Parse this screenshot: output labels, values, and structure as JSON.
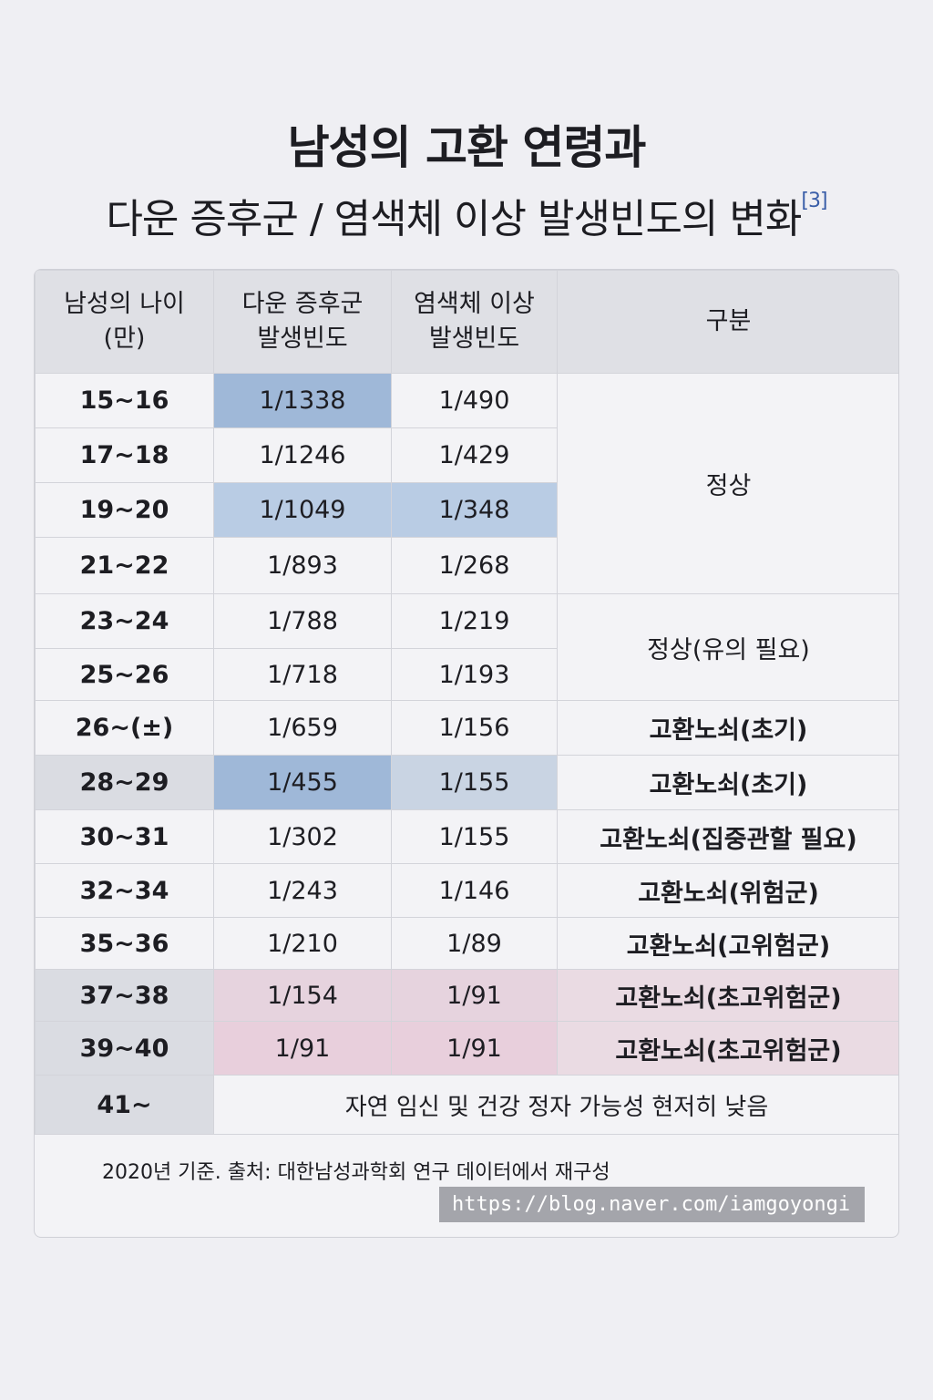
{
  "title": "남성의 고환 연령과",
  "subtitle": "다운 증후군 / 염색체 이상 발생빈도의 변화",
  "citation": "[3]",
  "table": {
    "headers": [
      "남성의 나이\n(만)",
      "다운 증후군\n발생빈도",
      "염색체 이상\n발생빈도",
      "구분"
    ],
    "rows": [
      {
        "age": "15~16",
        "down": "1/1338",
        "chrom": "1/490"
      },
      {
        "age": "17~18",
        "down": "1/1246",
        "chrom": "1/429"
      },
      {
        "age": "19~20",
        "down": "1/1049",
        "chrom": "1/348"
      },
      {
        "age": "21~22",
        "down": "1/893",
        "chrom": "1/268"
      },
      {
        "age": "23~24",
        "down": "1/788",
        "chrom": "1/219"
      },
      {
        "age": "25~26",
        "down": "1/718",
        "chrom": "1/193"
      },
      {
        "age": "26~(±)",
        "down": "1/659",
        "chrom": "1/156",
        "category": "고환노쇠(초기)"
      },
      {
        "age": "28~29",
        "down": "1/455",
        "chrom": "1/155",
        "category": "고환노쇠(초기)"
      },
      {
        "age": "30~31",
        "down": "1/302",
        "chrom": "1/155",
        "category": "고환노쇠(집중관할 필요)"
      },
      {
        "age": "32~34",
        "down": "1/243",
        "chrom": "1/146",
        "category": "고환노쇠(위험군)"
      },
      {
        "age": "35~36",
        "down": "1/210",
        "chrom": "1/89",
        "category": "고환노쇠(고위험군)"
      },
      {
        "age": "37~38",
        "down": "1/154",
        "chrom": "1/91",
        "category": "고환노쇠(초고위험군)"
      },
      {
        "age": "39~40",
        "down": "1/91",
        "chrom": "1/91",
        "category": "고환노쇠(초고위험군)"
      }
    ],
    "group_normal": "정상",
    "group_caution": "정상(유의 필요)",
    "last_row": {
      "age": "41~",
      "note": "자연 임신 및 건강 정자 가능성 현저히 낮음"
    }
  },
  "footer": "2020년 기준. 출처: 대한남성과학회 연구 데이터에서 재구성",
  "watermark": "https://blog.naver.com/iamgoyongi",
  "colors": {
    "highlight_blue": "#9fb8d8",
    "highlight_pink": "#e8cfdc"
  }
}
